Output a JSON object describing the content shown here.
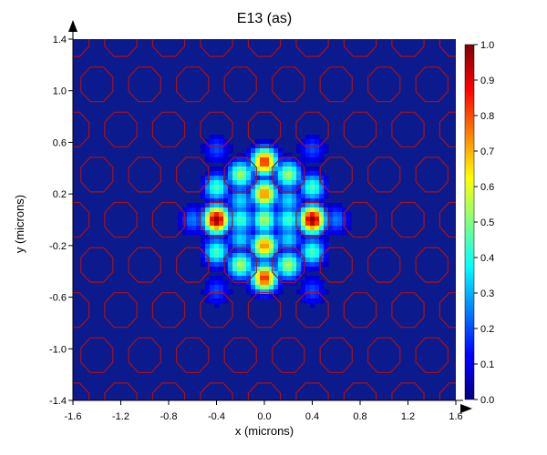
{
  "chart_data": {
    "type": "heatmap",
    "title": "E13 (as)",
    "xlabel": "x (microns)",
    "ylabel": "y (microns)",
    "xlim": [
      -1.6,
      1.6
    ],
    "ylim": [
      -1.4,
      1.4
    ],
    "x_ticks": [
      "-1.6",
      "-1.2",
      "-0.8",
      "-0.4",
      "0.0",
      "0.4",
      "0.8",
      "1.2",
      "1.6"
    ],
    "y_ticks": [
      "1.4",
      "1.0",
      "0.6",
      "0.2",
      "-0.2",
      "-0.6",
      "-1.0",
      "-1.4"
    ],
    "colorbar": {
      "range": [
        0.0,
        1.0
      ],
      "ticks": [
        "1.0",
        "0.9",
        "0.8",
        "0.7",
        "0.6",
        "0.5",
        "0.4",
        "0.3",
        "0.2",
        "0.1",
        "0.0"
      ],
      "colormap": "jet"
    },
    "structure": {
      "lattice": "triangular",
      "hole_color": "#b01010",
      "field_background_color": "#0b1a8c"
    },
    "field_peaks": [
      {
        "x": -0.4,
        "y": 0.0,
        "value": 1.0
      },
      {
        "x": 0.4,
        "y": 0.0,
        "value": 1.0
      },
      {
        "x": 0.0,
        "y": 0.2,
        "value": 0.75
      },
      {
        "x": 0.0,
        "y": -0.2,
        "value": 0.75
      },
      {
        "x": 0.0,
        "y": 0.45,
        "value": 0.85
      },
      {
        "x": 0.0,
        "y": -0.45,
        "value": 0.85
      },
      {
        "x": 0.0,
        "y": 0.0,
        "value": 0.55
      },
      {
        "x": -0.2,
        "y": 0.35,
        "value": 0.55
      },
      {
        "x": 0.2,
        "y": 0.35,
        "value": 0.55
      },
      {
        "x": -0.2,
        "y": -0.35,
        "value": 0.55
      },
      {
        "x": 0.2,
        "y": -0.35,
        "value": 0.55
      },
      {
        "x": -0.4,
        "y": 0.25,
        "value": 0.45
      },
      {
        "x": 0.4,
        "y": 0.25,
        "value": 0.45
      },
      {
        "x": -0.4,
        "y": -0.25,
        "value": 0.45
      },
      {
        "x": 0.4,
        "y": -0.25,
        "value": 0.45
      },
      {
        "x": -0.2,
        "y": 0.0,
        "value": 0.45
      },
      {
        "x": 0.2,
        "y": 0.0,
        "value": 0.45
      },
      {
        "x": -0.2,
        "y": 0.15,
        "value": 0.35
      },
      {
        "x": 0.2,
        "y": 0.15,
        "value": 0.35
      },
      {
        "x": -0.2,
        "y": -0.15,
        "value": 0.35
      },
      {
        "x": 0.2,
        "y": -0.15,
        "value": 0.35
      },
      {
        "x": -0.6,
        "y": 0.0,
        "value": 0.25
      },
      {
        "x": 0.6,
        "y": 0.0,
        "value": 0.25
      },
      {
        "x": -0.4,
        "y": 0.55,
        "value": 0.2
      },
      {
        "x": 0.4,
        "y": 0.55,
        "value": 0.2
      },
      {
        "x": -0.4,
        "y": -0.55,
        "value": 0.2
      },
      {
        "x": 0.4,
        "y": -0.55,
        "value": 0.2
      }
    ]
  }
}
